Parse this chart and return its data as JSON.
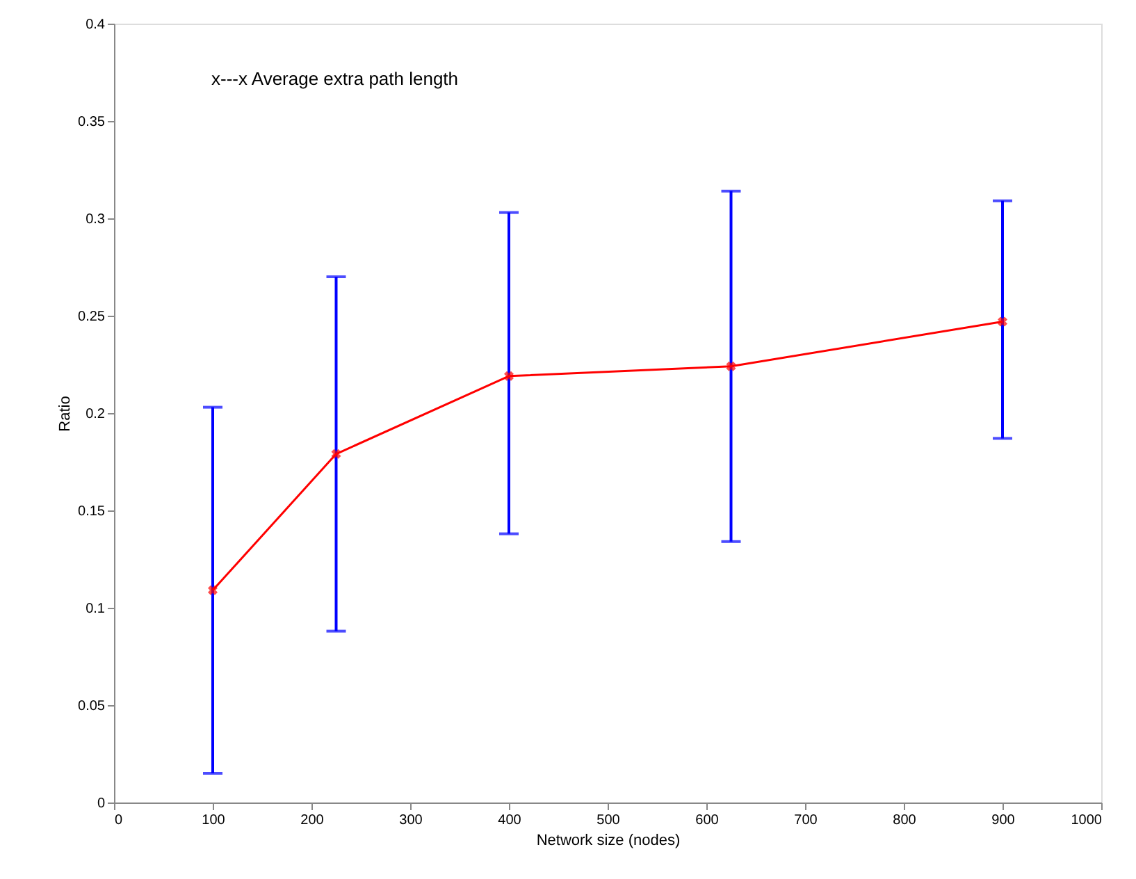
{
  "chart_data": {
    "type": "line",
    "xlabel": "Network size (nodes)",
    "ylabel": "Ratio",
    "x": [
      100,
      225,
      400,
      625,
      900
    ],
    "series": [
      {
        "color": "#ff0000",
        "values": [
          0.109,
          0.179,
          0.219,
          0.224,
          0.247
        ],
        "errors": [
          [
            0.015,
            0.203
          ],
          [
            0.088,
            0.27
          ],
          [
            0.138,
            0.303
          ],
          [
            0.134,
            0.314
          ],
          [
            0.187,
            0.309
          ]
        ]
      }
    ],
    "xlim": [
      0,
      1000
    ],
    "xticks": [
      0,
      100,
      200,
      300,
      400,
      500,
      600,
      700,
      800,
      900,
      1000
    ],
    "ylim": [
      0,
      0.4
    ],
    "yticks": [
      0,
      0.05,
      0.1,
      0.15,
      0.2,
      0.25,
      0.3,
      0.35,
      0.4
    ],
    "annotations": [
      "x---x   Average extra path length"
    ],
    "grid": false,
    "marker": "cross",
    "line_style": "solid"
  }
}
